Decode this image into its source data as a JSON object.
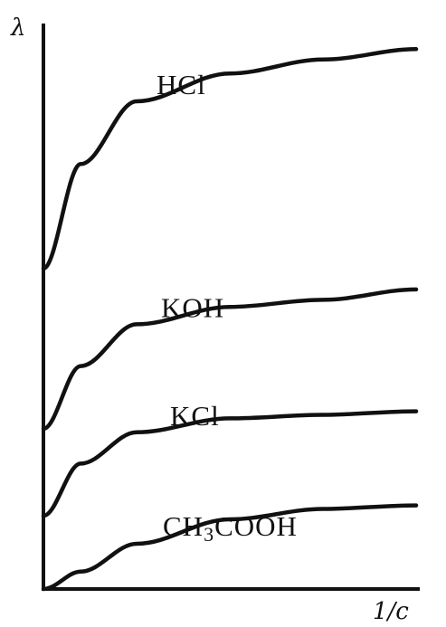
{
  "chart_data": {
    "type": "line",
    "title": "",
    "xlabel": "1/c",
    "ylabel": "λ",
    "grid": false,
    "series": [
      {
        "name": "HCl",
        "points": [
          [
            0,
            46
          ],
          [
            0.1,
            61
          ],
          [
            0.25,
            70
          ],
          [
            0.5,
            74
          ],
          [
            0.75,
            76
          ],
          [
            1.0,
            77.5
          ]
        ]
      },
      {
        "name": "KOH",
        "points": [
          [
            0,
            23
          ],
          [
            0.1,
            32
          ],
          [
            0.25,
            38
          ],
          [
            0.5,
            40.5
          ],
          [
            0.75,
            41.5
          ],
          [
            1.0,
            43
          ]
        ]
      },
      {
        "name": "KCl",
        "points": [
          [
            0,
            10.5
          ],
          [
            0.1,
            18
          ],
          [
            0.25,
            22.5
          ],
          [
            0.5,
            24.5
          ],
          [
            0.75,
            25
          ],
          [
            1.0,
            25.5
          ]
        ]
      },
      {
        "name": "CH3COOH",
        "points": [
          [
            0,
            0
          ],
          [
            0.1,
            2.5
          ],
          [
            0.25,
            6.5
          ],
          [
            0.5,
            10
          ],
          [
            0.75,
            11.5
          ],
          [
            1.0,
            12
          ]
        ]
      }
    ]
  }
}
